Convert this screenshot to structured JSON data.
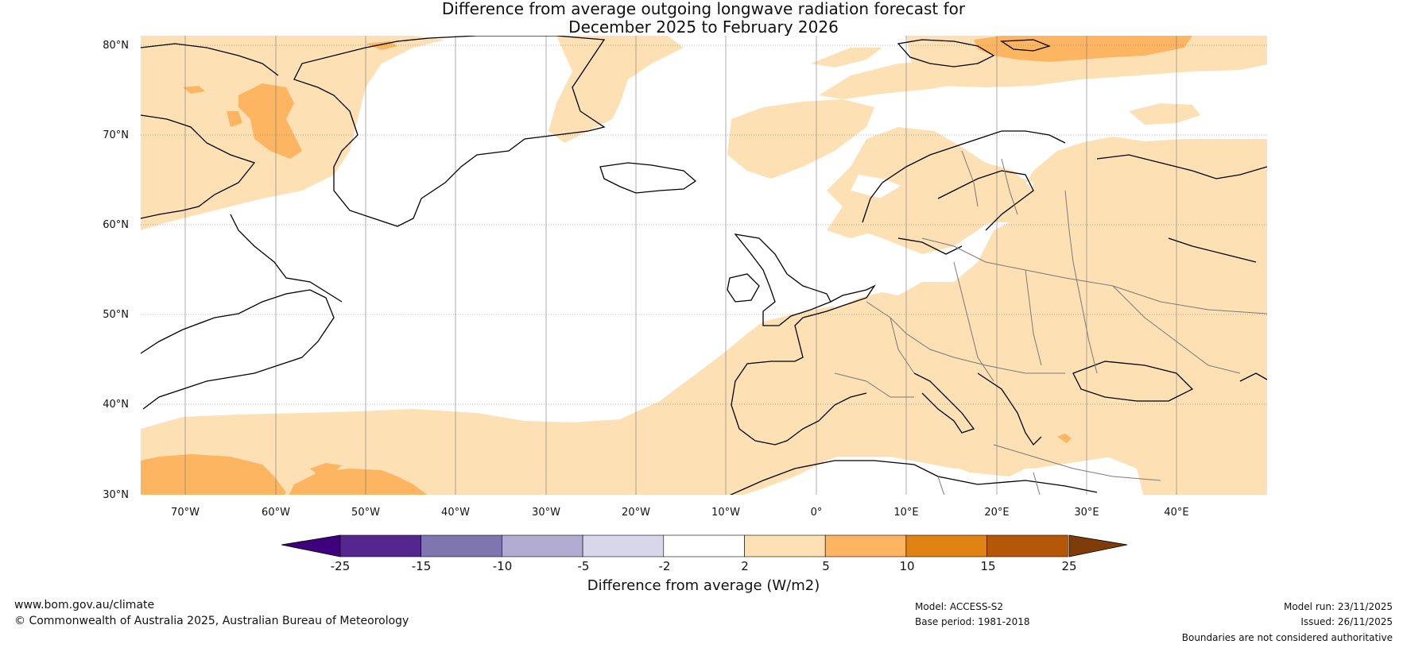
{
  "title": {
    "line1": "Difference from average outgoing longwave radiation forecast for",
    "line2": "December 2025 to February 2026"
  },
  "map": {
    "lat_labels": [
      "80°N",
      "70°N",
      "60°N",
      "50°N",
      "40°N",
      "30°N"
    ],
    "lon_labels": [
      "70°W",
      "60°W",
      "50°W",
      "40°W",
      "30°W",
      "20°W",
      "10°W",
      "0°",
      "10°E",
      "20°E",
      "30°E",
      "40°E"
    ],
    "colors": {
      "ocean": "#ffffff",
      "band_2_5": "#fde0b4",
      "band_5_10": "#fdb562",
      "coast": "#000000",
      "border": "#7a7a7a"
    }
  },
  "colorbar": {
    "ticks": [
      "-25",
      "-15",
      "-10",
      "-5",
      "-2",
      "2",
      "5",
      "10",
      "15",
      "25"
    ],
    "colors": [
      "#3f007d",
      "#54278f",
      "#7f75b0",
      "#b2abd2",
      "#d8d7ea",
      "#ffffff",
      "#fde0b4",
      "#fdb562",
      "#e08214",
      "#b35806",
      "#7f3b08"
    ],
    "label": "Difference from average (W/m2)"
  },
  "footer": {
    "website": "www.bom.gov.au/climate",
    "copyright": "© Commonwealth of Australia 2025, Australian Bureau of Meteorology",
    "model": "Model: ACCESS-S2",
    "base_period": "Base period: 1981-2018",
    "model_run": "Model run: 23/11/2025",
    "issued": "Issued: 26/11/2025",
    "disclaimer": "Boundaries are not considered authoritative"
  }
}
